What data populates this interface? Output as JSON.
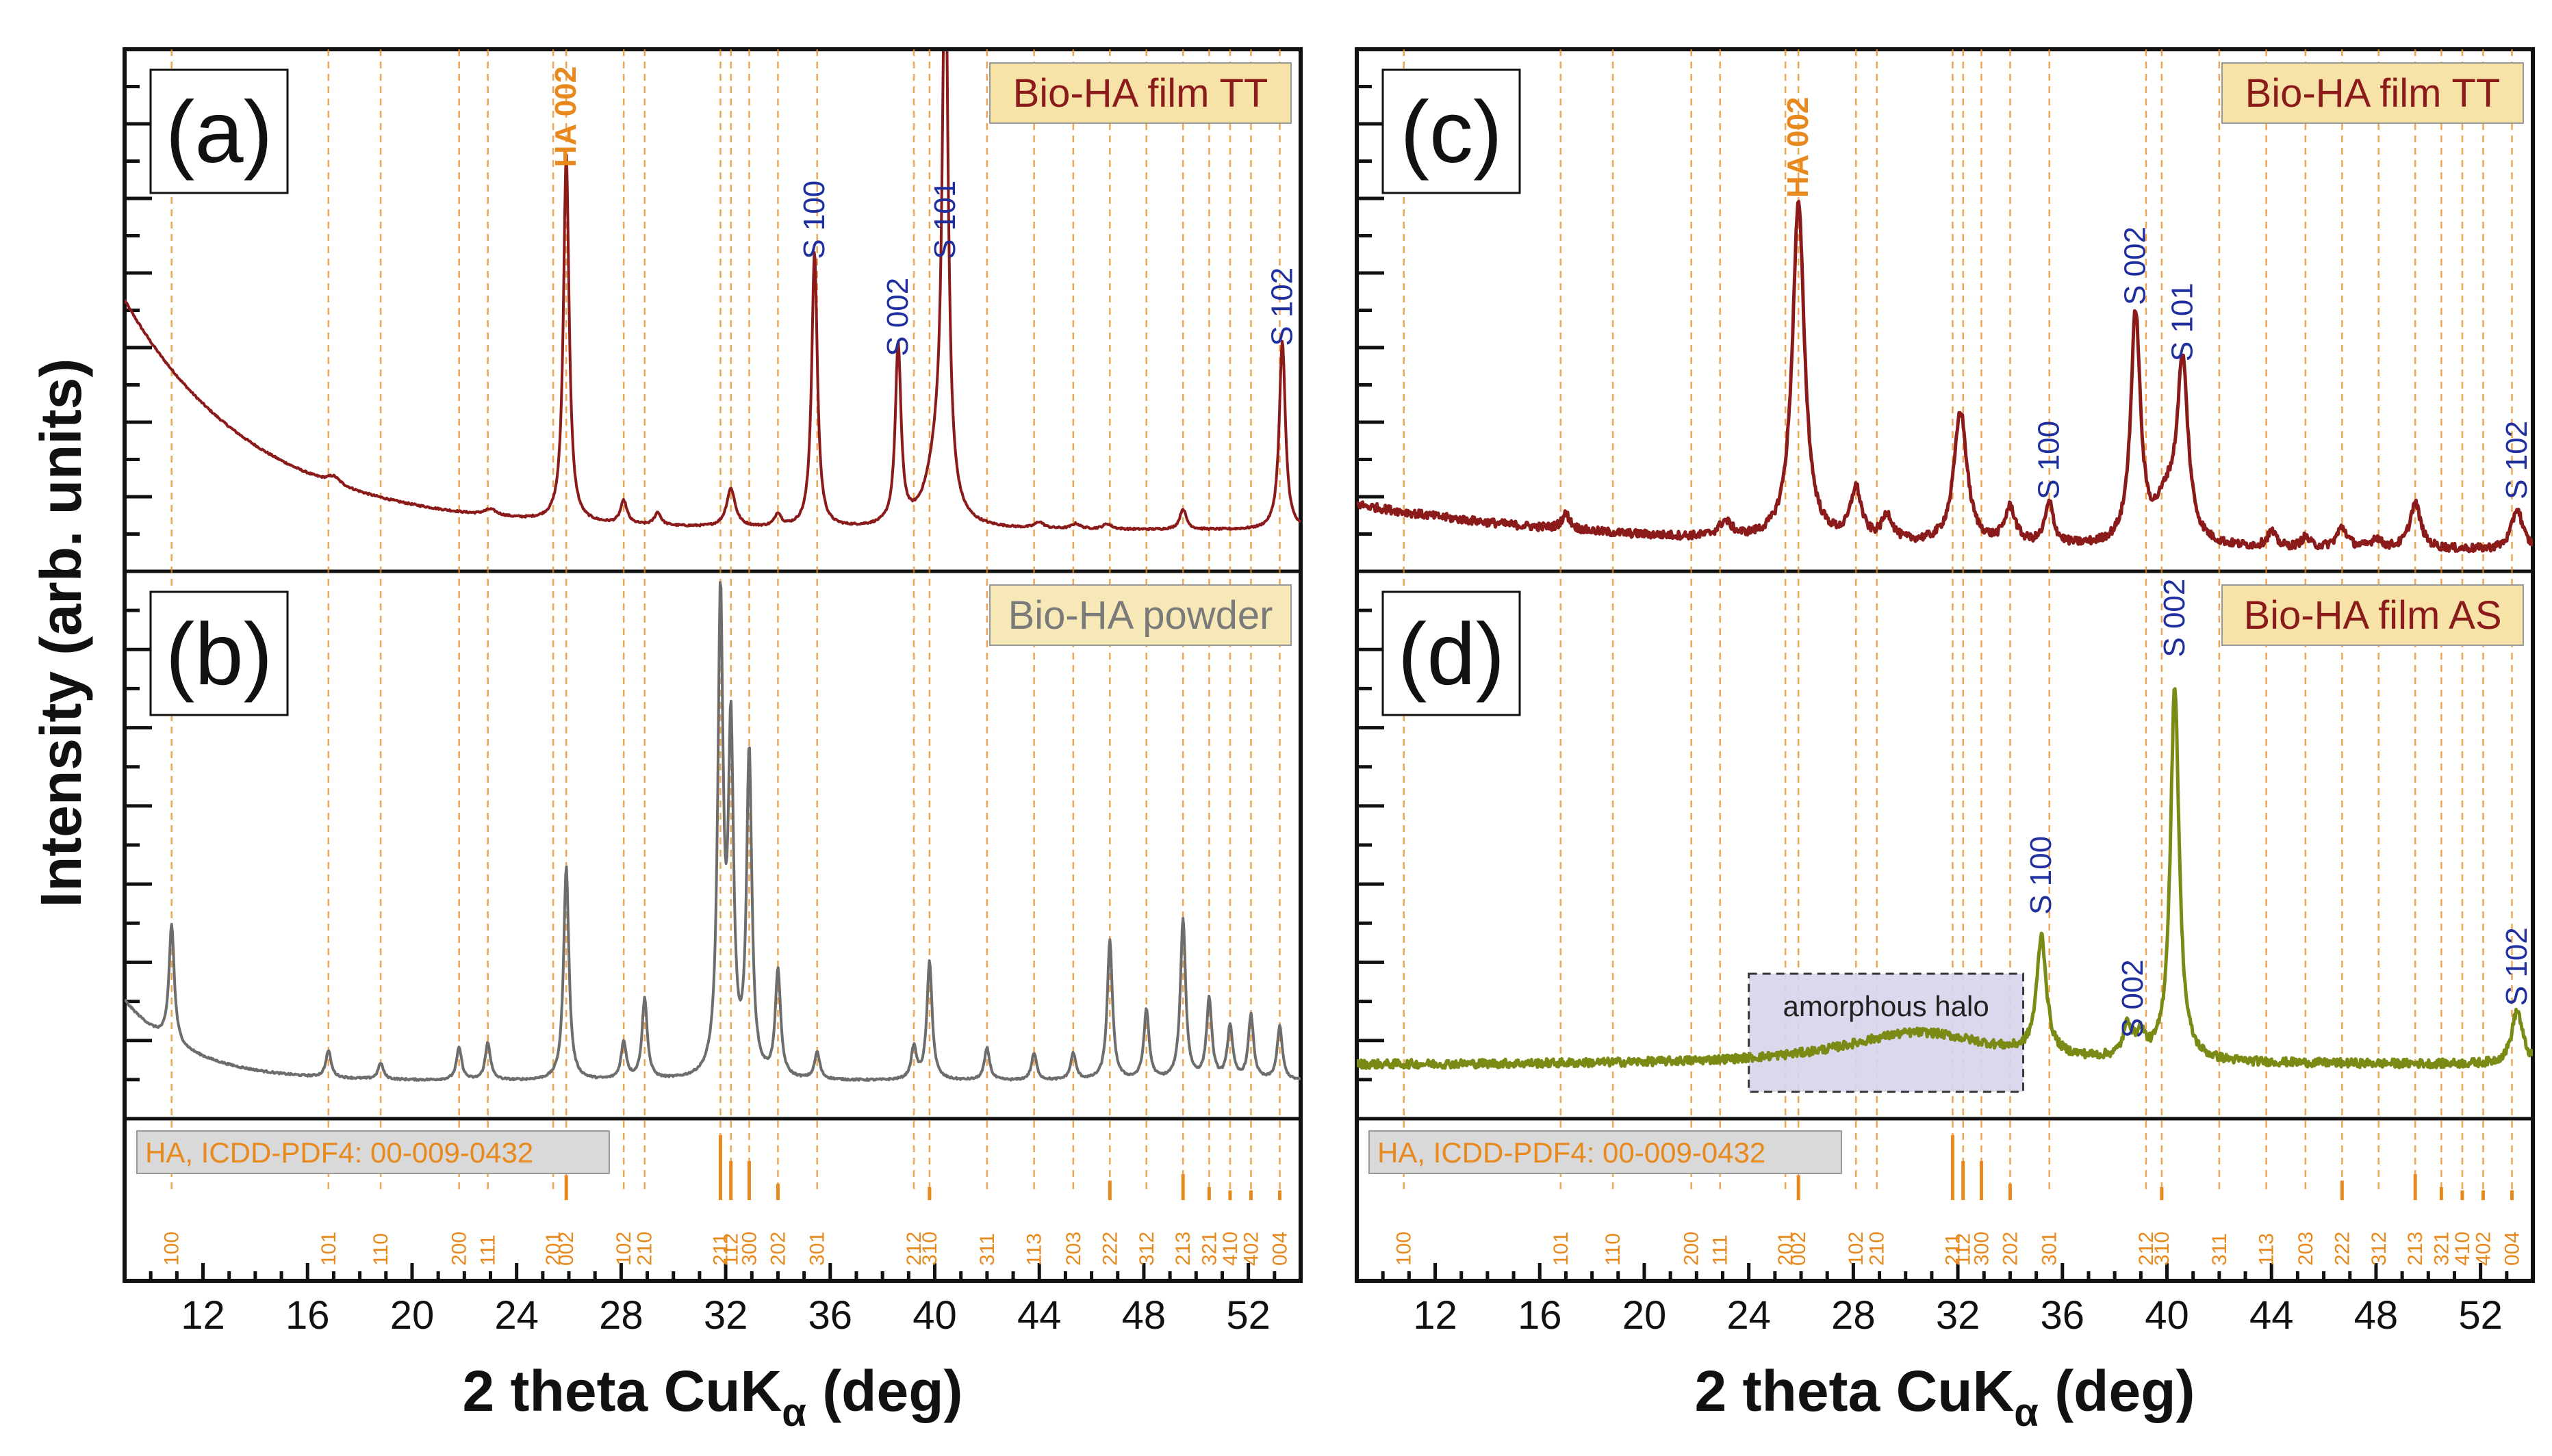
{
  "figure": {
    "ylabel": "Intensity (arb. units)",
    "xlabel_main": "2 theta CuK",
    "xlabel_sub": "α",
    "xlabel_unit": " (deg)"
  },
  "chart_data": [
    {
      "id": "a",
      "type": "line",
      "panel_label": "(a)",
      "sample_label": "Bio-HA film TT",
      "color": "#8b1a1a",
      "label_bg": "#f7e2a8",
      "label_color": "#8b1a1a",
      "xlabel": "2 theta CuKα (deg)",
      "ylabel": "Intensity (arb. units)",
      "xlim": [
        9,
        54
      ],
      "ylim": [
        0,
        100
      ],
      "baseline": {
        "type": "decay",
        "start": 52,
        "end": 7,
        "tau": 5
      },
      "peaks": [
        {
          "x": 17.0,
          "h": 1.5,
          "w": 0.3
        },
        {
          "x": 23.0,
          "h": 1.2,
          "w": 0.3
        },
        {
          "x": 25.9,
          "h": 72,
          "w": 0.13
        },
        {
          "x": 28.1,
          "h": 4.5,
          "w": 0.15
        },
        {
          "x": 29.4,
          "h": 2.5,
          "w": 0.15
        },
        {
          "x": 32.2,
          "h": 7.5,
          "w": 0.2
        },
        {
          "x": 34.0,
          "h": 2.5,
          "w": 0.15
        },
        {
          "x": 35.4,
          "h": 54,
          "w": 0.13
        },
        {
          "x": 38.6,
          "h": 35,
          "w": 0.13
        },
        {
          "x": 40.1,
          "h": 12,
          "w": 0.5
        },
        {
          "x": 40.4,
          "h": 110,
          "w": 0.13
        },
        {
          "x": 44.0,
          "h": 1.2,
          "w": 0.2
        },
        {
          "x": 45.4,
          "h": 1.0,
          "w": 0.2
        },
        {
          "x": 46.6,
          "h": 1.0,
          "w": 0.2
        },
        {
          "x": 49.5,
          "h": 4,
          "w": 0.15
        },
        {
          "x": 53.3,
          "h": 37,
          "w": 0.14
        }
      ],
      "peak_labels": [
        {
          "text": "HA 002",
          "x": 25.9,
          "y": 78,
          "color": "#e8891e",
          "bold": true
        },
        {
          "text": "S 100",
          "x": 35.4,
          "y": 60,
          "color": "#1f2f9e",
          "bold": false
        },
        {
          "text": "S 002",
          "x": 38.6,
          "y": 41,
          "color": "#1f2f9e",
          "bold": false
        },
        {
          "text": "S 101",
          "x": 40.4,
          "y": 60,
          "color": "#1f2f9e",
          "bold": false
        },
        {
          "text": "S 102",
          "x": 53.3,
          "y": 43,
          "color": "#1f2f9e",
          "bold": false
        }
      ]
    },
    {
      "id": "b",
      "type": "line",
      "panel_label": "(b)",
      "sample_label": "Bio-HA powder",
      "color": "#6d6d6d",
      "label_bg": "#f7e8b8",
      "label_color": "#7a7a7a",
      "xlabel": "2 theta CuKα (deg)",
      "ylabel": "Intensity (arb. units)",
      "xlim": [
        9,
        54
      ],
      "ylim": [
        0,
        100
      ],
      "baseline": {
        "type": "decay",
        "start": 21,
        "end": 6,
        "tau": 2.5
      },
      "peaks": [
        {
          "x": 10.8,
          "h": 22,
          "w": 0.12
        },
        {
          "x": 16.8,
          "h": 5,
          "w": 0.12
        },
        {
          "x": 18.8,
          "h": 3,
          "w": 0.12
        },
        {
          "x": 21.8,
          "h": 6,
          "w": 0.12
        },
        {
          "x": 22.9,
          "h": 7,
          "w": 0.12
        },
        {
          "x": 25.9,
          "h": 40,
          "w": 0.12
        },
        {
          "x": 28.1,
          "h": 7,
          "w": 0.12
        },
        {
          "x": 28.9,
          "h": 15,
          "w": 0.12
        },
        {
          "x": 31.8,
          "h": 88,
          "w": 0.12
        },
        {
          "x": 32.2,
          "h": 62,
          "w": 0.12
        },
        {
          "x": 32.9,
          "h": 60,
          "w": 0.12
        },
        {
          "x": 34.0,
          "h": 20,
          "w": 0.12
        },
        {
          "x": 35.5,
          "h": 5,
          "w": 0.12
        },
        {
          "x": 39.2,
          "h": 6,
          "w": 0.12
        },
        {
          "x": 39.8,
          "h": 22,
          "w": 0.12
        },
        {
          "x": 42.0,
          "h": 6,
          "w": 0.12
        },
        {
          "x": 43.8,
          "h": 5,
          "w": 0.12
        },
        {
          "x": 45.3,
          "h": 5,
          "w": 0.12
        },
        {
          "x": 46.7,
          "h": 26,
          "w": 0.12
        },
        {
          "x": 48.1,
          "h": 13,
          "w": 0.12
        },
        {
          "x": 49.5,
          "h": 30,
          "w": 0.12
        },
        {
          "x": 50.5,
          "h": 15,
          "w": 0.12
        },
        {
          "x": 51.3,
          "h": 10,
          "w": 0.12
        },
        {
          "x": 52.1,
          "h": 12,
          "w": 0.12
        },
        {
          "x": 53.2,
          "h": 10,
          "w": 0.12
        }
      ],
      "peak_labels": []
    },
    {
      "id": "c",
      "type": "line",
      "panel_label": "(c)",
      "sample_label": "Bio-HA film TT",
      "color": "#8b1a1a",
      "label_bg": "#f7e2a8",
      "label_color": "#8b1a1a",
      "xlabel": "2 theta CuKα (deg)",
      "ylabel": "Intensity (arb. units)",
      "xlim": [
        9,
        54
      ],
      "ylim": [
        0,
        100
      ],
      "baseline": {
        "type": "decay",
        "start": 12,
        "end": 3,
        "tau": 10
      },
      "peaks": [
        {
          "x": 17.0,
          "h": 3,
          "w": 0.2
        },
        {
          "x": 23.1,
          "h": 3,
          "w": 0.3
        },
        {
          "x": 25.9,
          "h": 66,
          "w": 0.28
        },
        {
          "x": 28.1,
          "h": 10,
          "w": 0.25
        },
        {
          "x": 29.3,
          "h": 5,
          "w": 0.25
        },
        {
          "x": 32.1,
          "h": 26,
          "w": 0.3
        },
        {
          "x": 34.0,
          "h": 7,
          "w": 0.25
        },
        {
          "x": 35.5,
          "h": 8,
          "w": 0.2
        },
        {
          "x": 38.8,
          "h": 45,
          "w": 0.22
        },
        {
          "x": 40.0,
          "h": 8,
          "w": 0.5
        },
        {
          "x": 40.6,
          "h": 34,
          "w": 0.25
        },
        {
          "x": 44.0,
          "h": 3,
          "w": 0.2
        },
        {
          "x": 45.3,
          "h": 2,
          "w": 0.2
        },
        {
          "x": 46.7,
          "h": 4,
          "w": 0.25
        },
        {
          "x": 48.0,
          "h": 2,
          "w": 0.2
        },
        {
          "x": 49.5,
          "h": 9,
          "w": 0.25
        },
        {
          "x": 53.4,
          "h": 8,
          "w": 0.25
        }
      ],
      "peak_labels": [
        {
          "text": "HA 002",
          "x": 25.9,
          "y": 72,
          "color": "#e8891e",
          "bold": true
        },
        {
          "text": "S 100",
          "x": 35.5,
          "y": 13,
          "color": "#1f2f9e",
          "bold": false
        },
        {
          "text": "S 002",
          "x": 38.8,
          "y": 51,
          "color": "#1f2f9e",
          "bold": false
        },
        {
          "text": "S 101",
          "x": 40.6,
          "y": 40,
          "color": "#1f2f9e",
          "bold": false
        },
        {
          "text": "S 102",
          "x": 53.4,
          "y": 13,
          "color": "#1f2f9e",
          "bold": false
        }
      ]
    },
    {
      "id": "d",
      "type": "line",
      "panel_label": "(d)",
      "sample_label": "Bio-HA film AS",
      "color": "#7a8a14",
      "label_bg": "#f7e2a8",
      "label_color": "#8b1a1a",
      "xlabel": "2 theta CuKα (deg)",
      "ylabel": "Intensity (arb. units)",
      "xlim": [
        9,
        54
      ],
      "ylim": [
        0,
        100
      ],
      "baseline": {
        "type": "flat",
        "level": 9
      },
      "peaks": [
        {
          "x": 30.5,
          "h": 6,
          "w": 3.5
        },
        {
          "x": 35.2,
          "h": 22,
          "w": 0.22
        },
        {
          "x": 38.5,
          "h": 6,
          "w": 0.2
        },
        {
          "x": 39.0,
          "h": 4,
          "w": 0.2
        },
        {
          "x": 40.3,
          "h": 70,
          "w": 0.2
        },
        {
          "x": 53.4,
          "h": 10,
          "w": 0.25
        }
      ],
      "peak_labels": [
        {
          "text": "S 100",
          "x": 35.2,
          "y": 37,
          "color": "#1f2f9e",
          "bold": false
        },
        {
          "text": "S 002",
          "x": 38.7,
          "y": 14,
          "color": "#1f2f9e",
          "bold": false
        },
        {
          "text": "S 002",
          "x": 40.3,
          "y": 85,
          "color": "#1f2f9e",
          "bold": false
        },
        {
          "text": "S 102",
          "x": 53.4,
          "y": 20,
          "color": "#1f2f9e",
          "bold": false
        }
      ],
      "annotation": {
        "text": "amorphous halo",
        "x_start": 24.0,
        "x_end": 34.5,
        "y_low": 4,
        "y_high": 26
      }
    }
  ],
  "reference": {
    "label": "HA, ICDD-PDF4: 00-009-0432",
    "color": "#e8891e",
    "lines": [
      {
        "x": 10.8,
        "label": "100",
        "h": 0.0
      },
      {
        "x": 16.8,
        "label": "101",
        "h": 0.0
      },
      {
        "x": 18.8,
        "label": "110",
        "h": 0.0
      },
      {
        "x": 21.8,
        "label": "200",
        "h": 0.0
      },
      {
        "x": 22.9,
        "label": "111",
        "h": 0.0
      },
      {
        "x": 25.4,
        "label": "201",
        "h": 0.0
      },
      {
        "x": 25.9,
        "label": "002",
        "h": 0.38
      },
      {
        "x": 28.1,
        "label": "102",
        "h": 0.0
      },
      {
        "x": 28.9,
        "label": "210",
        "h": 0.0
      },
      {
        "x": 31.8,
        "label": "211",
        "h": 1.0
      },
      {
        "x": 32.2,
        "label": "112",
        "h": 0.6
      },
      {
        "x": 32.9,
        "label": "300",
        "h": 0.6
      },
      {
        "x": 34.0,
        "label": "202",
        "h": 0.25
      },
      {
        "x": 35.5,
        "label": "301",
        "h": 0.0
      },
      {
        "x": 39.2,
        "label": "212",
        "h": 0.0
      },
      {
        "x": 39.8,
        "label": "310",
        "h": 0.2
      },
      {
        "x": 42.0,
        "label": "311",
        "h": 0.0
      },
      {
        "x": 43.8,
        "label": "113",
        "h": 0.0
      },
      {
        "x": 45.3,
        "label": "203",
        "h": 0.0
      },
      {
        "x": 46.7,
        "label": "222",
        "h": 0.3
      },
      {
        "x": 48.1,
        "label": "312",
        "h": 0.0
      },
      {
        "x": 49.5,
        "label": "213",
        "h": 0.4
      },
      {
        "x": 50.5,
        "label": "321",
        "h": 0.2
      },
      {
        "x": 51.3,
        "label": "410",
        "h": 0.15
      },
      {
        "x": 52.1,
        "label": "402",
        "h": 0.15
      },
      {
        "x": 53.2,
        "label": "004",
        "h": 0.15
      }
    ]
  },
  "xticks": [
    {
      "value": 12,
      "label": "12"
    },
    {
      "value": 16,
      "label": "16"
    },
    {
      "value": 20,
      "label": "20"
    },
    {
      "value": 24,
      "label": "24"
    },
    {
      "value": 28,
      "label": "28"
    },
    {
      "value": 32,
      "label": "32"
    },
    {
      "value": 36,
      "label": "36"
    },
    {
      "value": 40,
      "label": "40"
    },
    {
      "value": 44,
      "label": "44"
    },
    {
      "value": 48,
      "label": "48"
    },
    {
      "value": 52,
      "label": "52"
    }
  ],
  "colors": {
    "reference": "#e8891e",
    "s_label": "#1f2f9e",
    "halo_fill": "#d8d4ec",
    "icdd_bg": "#d9d9d9"
  }
}
